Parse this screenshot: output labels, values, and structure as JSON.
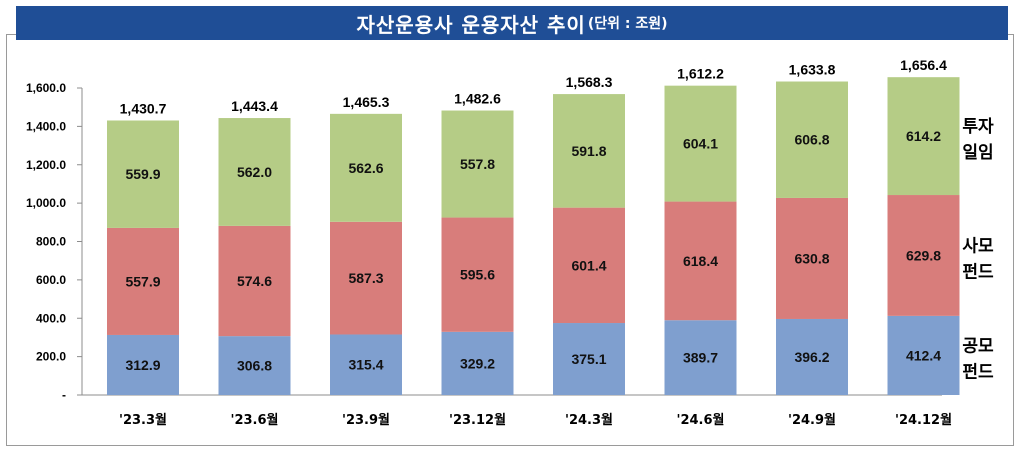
{
  "header": {
    "title": "자산운용사 운용자산 추이",
    "unit": "(단위 : 조원)"
  },
  "chart_data": {
    "type": "bar",
    "stacked": true,
    "categories": [
      "'23.3월",
      "'23.6월",
      "'23.9월",
      "'23.12월",
      "'24.3월",
      "'24.6월",
      "'24.9월",
      "'24.12월"
    ],
    "series": [
      {
        "name": "공모펀드",
        "legend_lines": [
          "공모",
          "펀드"
        ],
        "color": "#7f9fcf",
        "values": [
          312.9,
          306.8,
          315.4,
          329.2,
          375.1,
          389.7,
          396.2,
          412.4
        ]
      },
      {
        "name": "사모펀드",
        "legend_lines": [
          "사모",
          "펀드"
        ],
        "color": "#d87d7b",
        "values": [
          557.9,
          574.6,
          587.3,
          595.6,
          601.4,
          618.4,
          630.8,
          629.8
        ]
      },
      {
        "name": "투자일임",
        "legend_lines": [
          "투자",
          "일임"
        ],
        "color": "#b5cc86",
        "values": [
          559.9,
          562.0,
          562.6,
          557.8,
          591.8,
          604.1,
          606.8,
          614.2
        ]
      }
    ],
    "totals": [
      1430.7,
      1443.4,
      1465.3,
      1482.6,
      1568.3,
      1612.2,
      1633.8,
      1656.4
    ],
    "yticks": [
      "-",
      "200.0",
      "400.0",
      "600.0",
      "800.0",
      "1,000.0",
      "1,200.0",
      "1,400.0",
      "1,600.0"
    ],
    "ylim": [
      0,
      1600
    ],
    "grid": false,
    "legend_position": "right"
  }
}
